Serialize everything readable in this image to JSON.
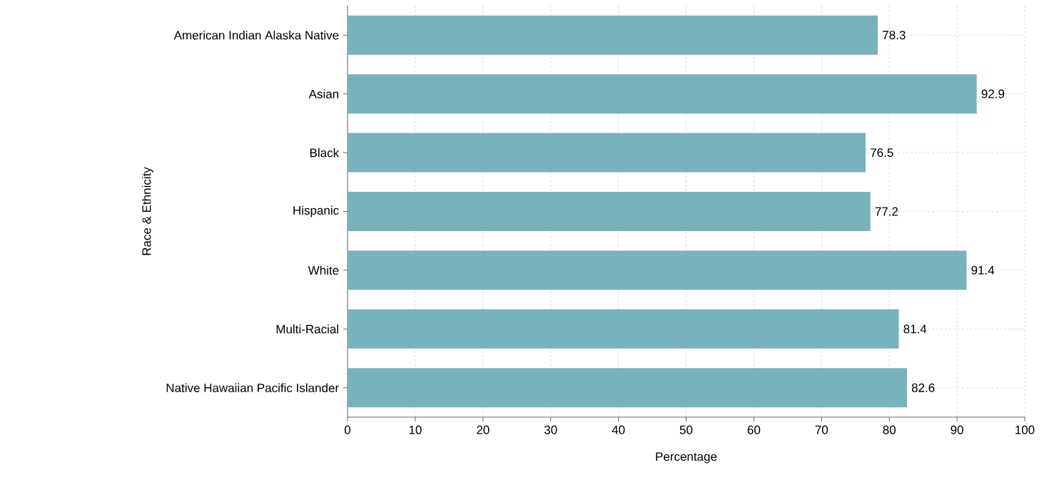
{
  "chart_data": {
    "type": "bar",
    "orientation": "horizontal",
    "xlabel": "Percentage",
    "ylabel": "Race & Ethnicity",
    "categories": [
      "American Indian Alaska Native",
      "Asian",
      "Black",
      "Hispanic",
      "White",
      "Multi-Racial",
      "Native Hawaiian Pacific Islander"
    ],
    "values": [
      78.3,
      92.9,
      76.5,
      77.2,
      91.4,
      81.4,
      82.6
    ],
    "color": "#78b2ba",
    "xlim": [
      0,
      100
    ],
    "xticks": [
      0,
      10,
      20,
      30,
      40,
      50,
      60,
      70,
      80,
      90,
      100
    ],
    "grid": true,
    "data_labels": true
  }
}
